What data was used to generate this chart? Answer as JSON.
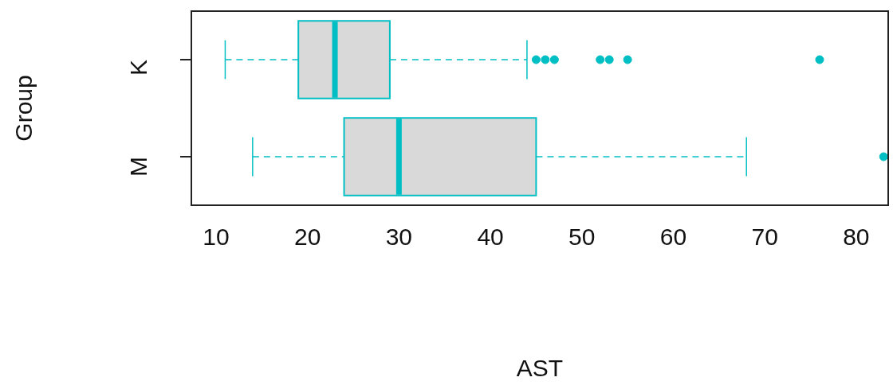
{
  "chart_data": {
    "type": "box",
    "orientation": "horizontal",
    "xlabel": "AST",
    "ylabel": "Group",
    "categories": [
      "K",
      "M"
    ],
    "series": [
      {
        "color": "#00bfc4",
        "boxes": [
          {
            "low": 11,
            "q1": 19,
            "median": 23,
            "q3": 29,
            "high": 44,
            "outliers": [
              45,
              46,
              47,
              52,
              53,
              55,
              76
            ]
          },
          {
            "low": 14,
            "q1": 24,
            "median": 30,
            "q3": 45,
            "high": 68,
            "outliers": [
              83
            ]
          }
        ]
      }
    ],
    "xlim": [
      7.3,
      83.5
    ],
    "xticks": [
      10,
      20,
      30,
      40,
      50,
      60,
      70,
      80
    ],
    "grid": false,
    "legend": false,
    "marker": "circle"
  }
}
